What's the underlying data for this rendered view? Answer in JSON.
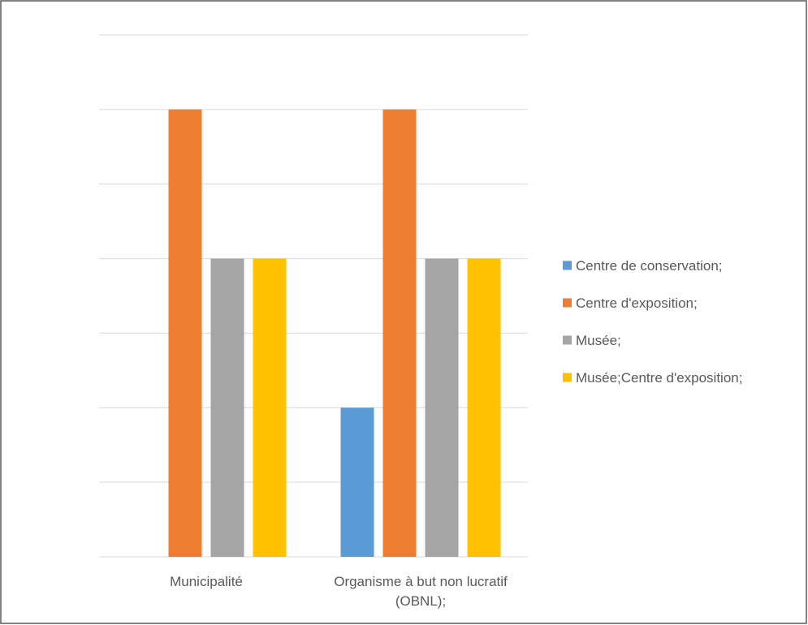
{
  "chart_data": {
    "type": "bar",
    "categories": [
      [
        "Municipalité"
      ],
      [
        "Organisme à but non lucratif",
        "(OBNL);"
      ]
    ],
    "series": [
      {
        "name": "Centre de conservation;",
        "color": "#5B9BD5",
        "values": [
          0,
          1
        ]
      },
      {
        "name": "Centre d'exposition;",
        "color": "#ED7D31",
        "values": [
          3,
          3
        ]
      },
      {
        "name": "Musée;",
        "color": "#A5A5A5",
        "values": [
          2,
          2
        ]
      },
      {
        "name": "Musée;Centre d'exposition;",
        "color": "#FFC000",
        "values": [
          2,
          2
        ]
      }
    ],
    "ylim": [
      0,
      3.5
    ],
    "grid": true,
    "gridline_values": [
      0,
      0.5,
      1,
      1.5,
      2,
      2.5,
      3,
      3.5
    ],
    "legend_position": "right",
    "title": "",
    "xlabel": "",
    "ylabel": ""
  }
}
